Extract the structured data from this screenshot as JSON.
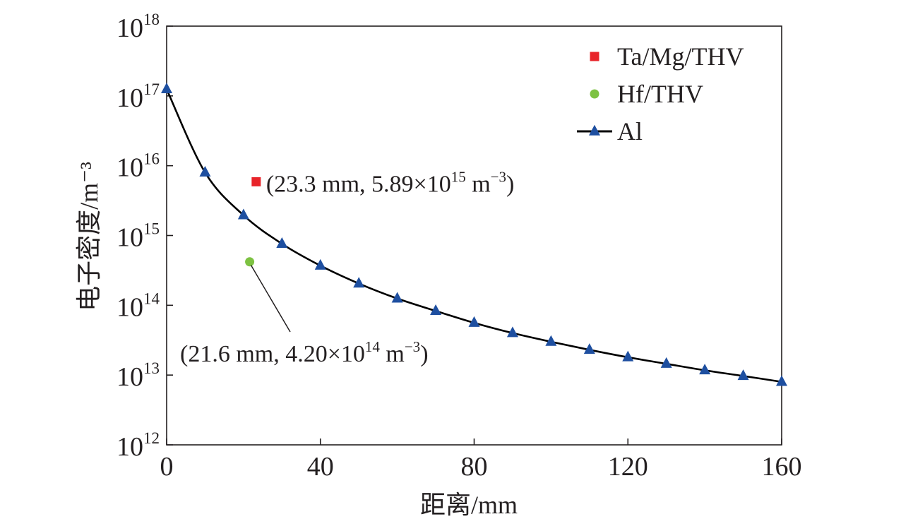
{
  "chart_data": {
    "type": "scatter",
    "xlabel": "距离/mm",
    "ylabel": "电子密度/m⁻³",
    "xlim": [
      0,
      160
    ],
    "ylim": [
      1000000000000.0,
      1e+18
    ],
    "yscale": "log",
    "x_ticks": [
      "0",
      "40",
      "80",
      "120",
      "160"
    ],
    "y_ticks": [
      {
        "base": "10",
        "exp": "12"
      },
      {
        "base": "10",
        "exp": "13"
      },
      {
        "base": "10",
        "exp": "14"
      },
      {
        "base": "10",
        "exp": "15"
      },
      {
        "base": "10",
        "exp": "16"
      },
      {
        "base": "10",
        "exp": "17"
      },
      {
        "base": "10",
        "exp": "18"
      }
    ],
    "grid": false,
    "legend_position": "top-right",
    "series": [
      {
        "name": "Ta/Mg/THV",
        "marker": "square",
        "color": "#e8242a",
        "points": [
          {
            "x": 23.3,
            "y": 5890000000000000.0
          }
        ]
      },
      {
        "name": "Hf/THV",
        "marker": "circle",
        "color": "#7dc242",
        "points": [
          {
            "x": 21.6,
            "y": 420000000000000.0
          }
        ]
      },
      {
        "name": "Al",
        "marker": "triangle",
        "color": "#1e4fa0",
        "line_color": "#000000",
        "points": [
          {
            "x": 0,
            "y": 1.25e+17
          },
          {
            "x": 10,
            "y": 8000000000000000.0
          },
          {
            "x": 20,
            "y": 1950000000000000.0
          },
          {
            "x": 30,
            "y": 760000000000000.0
          },
          {
            "x": 40,
            "y": 370000000000000.0
          },
          {
            "x": 50,
            "y": 205000000000000.0
          },
          {
            "x": 60,
            "y": 125000000000000.0
          },
          {
            "x": 70,
            "y": 83000000000000.0
          },
          {
            "x": 80,
            "y": 56000000000000.0
          },
          {
            "x": 90,
            "y": 40000000000000.0
          },
          {
            "x": 100,
            "y": 30000000000000.0
          },
          {
            "x": 110,
            "y": 23000000000000.0
          },
          {
            "x": 120,
            "y": 18000000000000.0
          },
          {
            "x": 130,
            "y": 14500000000000.0
          },
          {
            "x": 140,
            "y": 11700000000000.0
          },
          {
            "x": 150,
            "y": 9700000000000.0
          },
          {
            "x": 160,
            "y": 8000000000000.0
          }
        ]
      }
    ],
    "annotations": [
      {
        "text": "(23.3 mm, 5.89×10",
        "exp": "15",
        "tail": " m",
        "tail_exp": "−3",
        "close": ")",
        "x": 23.3,
        "y": 5890000000000000.0,
        "leader": false
      },
      {
        "text": "(21.6 mm, 4.20×10",
        "exp": "14",
        "tail": " m",
        "tail_exp": "−3",
        "close": ")",
        "x": 21.6,
        "y": 420000000000000.0,
        "leader": true
      }
    ]
  }
}
